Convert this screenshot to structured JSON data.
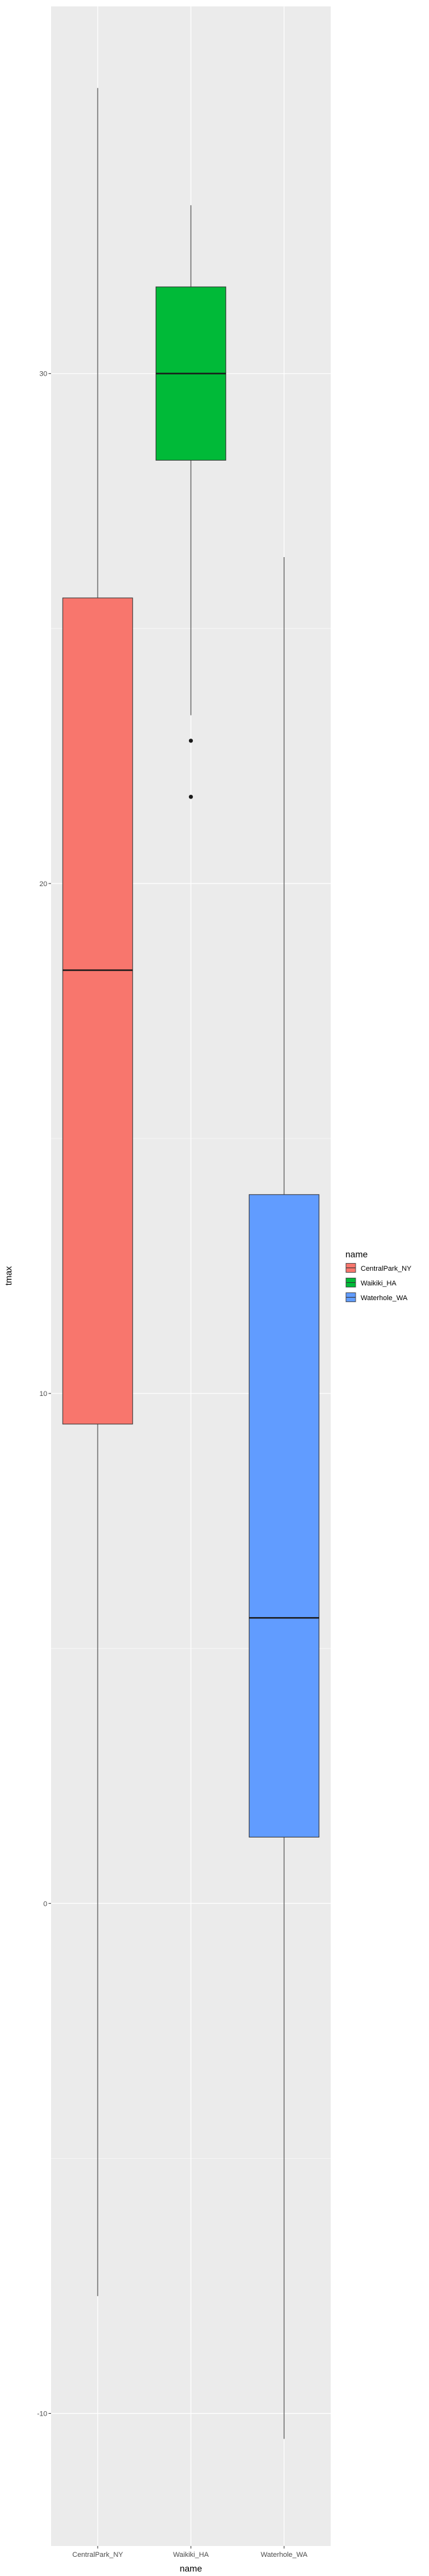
{
  "chart_data": {
    "type": "boxplot",
    "title": "",
    "xlabel": "name",
    "ylabel": "tmax",
    "ylim": [
      -12.6,
      37.2
    ],
    "y_ticks": [
      -10,
      0,
      10,
      20,
      30
    ],
    "grid": true,
    "legend": {
      "title": "name",
      "position": "right"
    },
    "categories": [
      "CentralPark_NY",
      "Waikiki_HA",
      "Waterhole_WA"
    ],
    "series": [
      {
        "name": "CentralPark_NY",
        "color": "#F8766D",
        "whisker_low": -7.7,
        "q1": 9.4,
        "median": 18.3,
        "q3": 25.6,
        "whisker_high": 35.6,
        "outliers": []
      },
      {
        "name": "Waikiki_HA",
        "color": "#00BA38",
        "whisker_low": 23.3,
        "q1": 28.3,
        "median": 30.0,
        "q3": 31.7,
        "whisker_high": 33.3,
        "outliers": [
          22.8,
          21.7
        ]
      },
      {
        "name": "Waterhole_WA",
        "color": "#619CFF",
        "whisker_low": -10.5,
        "q1": 1.3,
        "median": 5.6,
        "q3": 13.9,
        "whisker_high": 26.4,
        "outliers": []
      }
    ]
  }
}
